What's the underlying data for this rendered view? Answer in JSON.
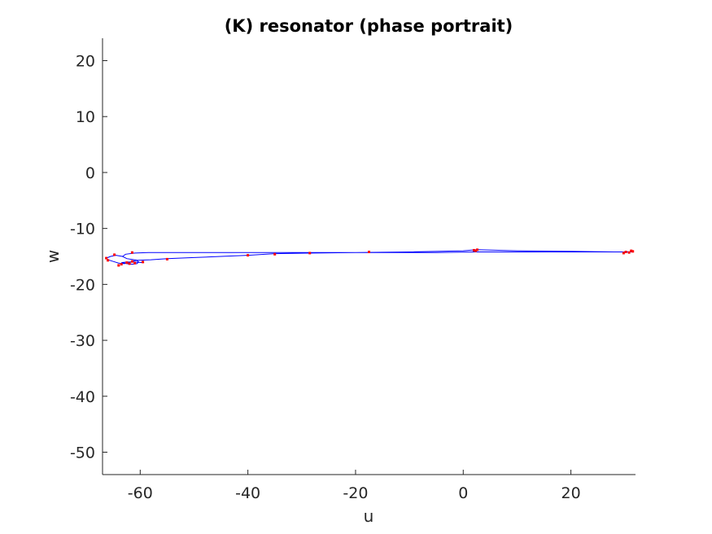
{
  "chart_data": {
    "type": "line",
    "title": "(K) resonator (phase portrait)",
    "xlabel": "u",
    "ylabel": "w",
    "xlim": [
      -67,
      32
    ],
    "ylim": [
      -54,
      24
    ],
    "xticks": [
      -60,
      -40,
      -20,
      0,
      20
    ],
    "yticks": [
      20,
      10,
      0,
      -10,
      -20,
      -30,
      -40,
      -50
    ],
    "grid": false,
    "series": [
      {
        "color": "#0000ff",
        "x": [
          31.5,
          30.0,
          25.0,
          20.0,
          10.0,
          2.0,
          -5.0,
          -15.0,
          -25.0,
          -35.0,
          -45.0,
          -53.0,
          -58.5,
          -61.0,
          -62.7,
          -63.3,
          -62.5,
          -60.5,
          -58.0,
          -55.0,
          -50.0,
          -45.0,
          -40.0,
          -35.0,
          -28.0,
          -20.0,
          -10.0,
          0.0,
          2.5,
          10.0,
          20.0,
          28.0,
          31.0
        ],
        "y": [
          -14.2,
          -14.2,
          -14.2,
          -14.2,
          -14.2,
          -14.2,
          -14.3,
          -14.3,
          -14.3,
          -14.3,
          -14.3,
          -14.3,
          -14.3,
          -14.4,
          -14.6,
          -15.0,
          -15.4,
          -15.7,
          -15.6,
          -15.4,
          -15.2,
          -15.0,
          -14.8,
          -14.5,
          -14.4,
          -14.3,
          -14.2,
          -14.0,
          -13.8,
          -14.0,
          -14.1,
          -14.2,
          -14.2
        ]
      },
      {
        "color": "#0000ff",
        "x": [
          -63.3,
          -64.5,
          -65.5,
          -66.3,
          -66.0,
          -65.0,
          -64.0,
          -63.0,
          -62.3,
          -61.8,
          -61.2,
          -60.6,
          -60.3,
          -60.6,
          -61.5,
          -62.5,
          -63.5,
          -62.5,
          -61.0,
          -59.5
        ],
        "y": [
          -15.0,
          -14.8,
          -15.0,
          -15.3,
          -15.6,
          -15.9,
          -16.2,
          -16.3,
          -16.2,
          -16.0,
          -15.8,
          -15.7,
          -16.0,
          -16.3,
          -16.4,
          -16.3,
          -16.1,
          -16.0,
          -16.0,
          -16.1
        ]
      }
    ],
    "markers": {
      "color": "#ff0000",
      "points": [
        [
          31.5,
          -14.1
        ],
        [
          30.8,
          -14.3
        ],
        [
          30.2,
          -14.2
        ],
        [
          29.8,
          -14.4
        ],
        [
          31.2,
          -14.0
        ],
        [
          2.0,
          -13.9
        ],
        [
          2.6,
          -13.8
        ],
        [
          2.3,
          -14.0
        ],
        [
          -17.5,
          -14.2
        ],
        [
          -28.5,
          -14.4
        ],
        [
          -35.0,
          -14.6
        ],
        [
          -40.0,
          -14.8
        ],
        [
          -55.0,
          -15.5
        ],
        [
          -59.5,
          -16.0
        ],
        [
          -61.0,
          -16.2
        ],
        [
          -62.0,
          -16.3
        ],
        [
          -61.5,
          -15.9
        ],
        [
          -62.5,
          -16.1
        ],
        [
          -63.5,
          -16.4
        ],
        [
          -64.0,
          -16.6
        ],
        [
          -64.8,
          -14.7
        ],
        [
          -66.3,
          -15.3
        ],
        [
          -66.0,
          -15.7
        ],
        [
          -61.5,
          -14.3
        ]
      ]
    }
  }
}
